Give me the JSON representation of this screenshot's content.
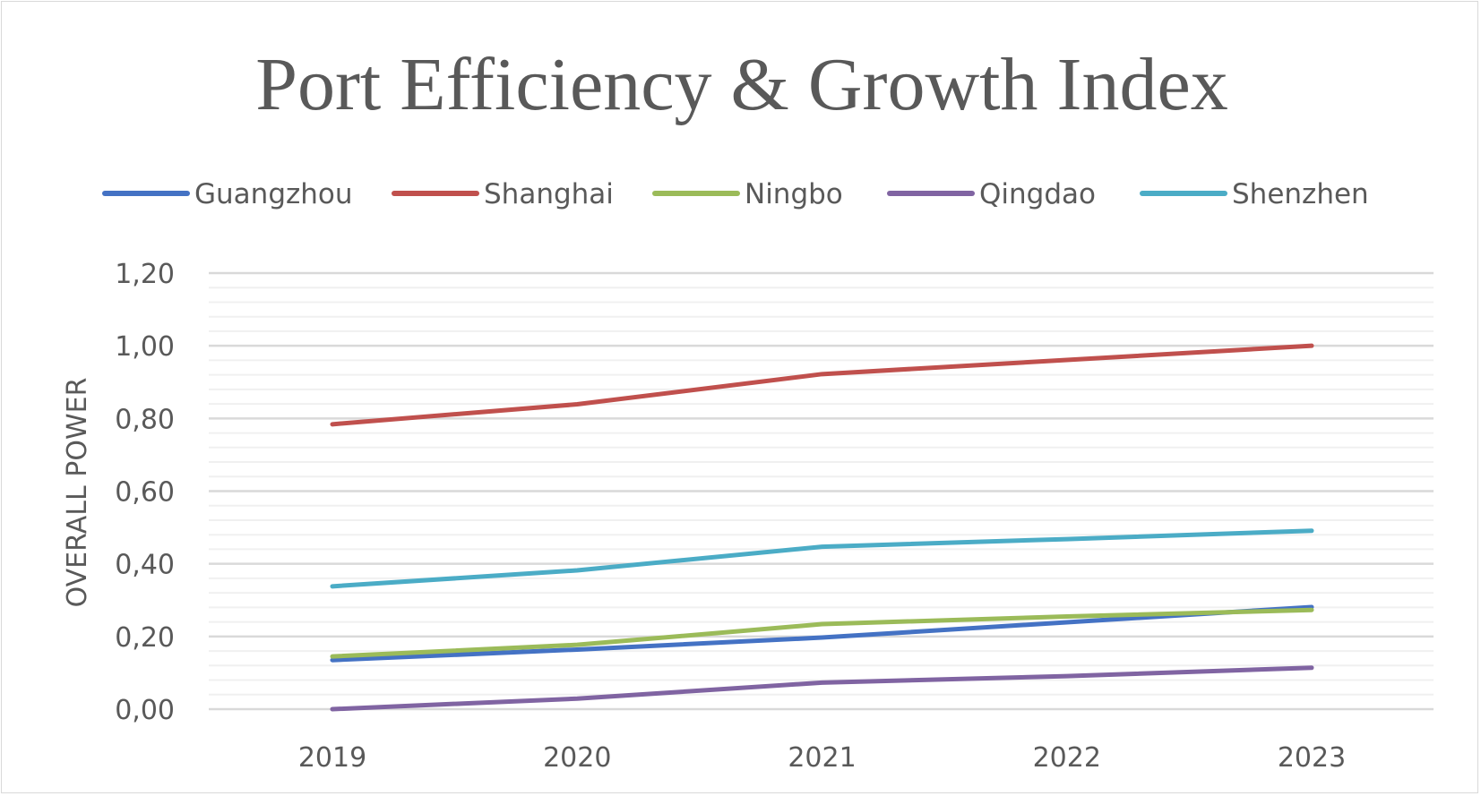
{
  "chart_data": {
    "type": "line",
    "title": "Port Efficiency & Growth Index",
    "xlabel": "",
    "ylabel": "OVERALL POWER",
    "categories": [
      "2019",
      "2020",
      "2021",
      "2022",
      "2023"
    ],
    "ylim": [
      0,
      1.2
    ],
    "yticks": [
      "0,00",
      "0,20",
      "0,40",
      "0,60",
      "0,80",
      "1,00",
      "1,20"
    ],
    "grid": true,
    "legend": "top",
    "series": [
      {
        "name": "Guangzhou",
        "color": "#4472c4",
        "values": [
          0.135,
          0.164,
          0.197,
          0.239,
          0.281
        ]
      },
      {
        "name": "Shanghai",
        "color": "#c0504d",
        "values": [
          0.784,
          0.839,
          0.922,
          0.961,
          1.0
        ]
      },
      {
        "name": "Ningbo",
        "color": "#9bbb59",
        "values": [
          0.145,
          0.177,
          0.234,
          0.255,
          0.273
        ]
      },
      {
        "name": "Qingdao",
        "color": "#8064a2",
        "values": [
          0.0,
          0.029,
          0.073,
          0.091,
          0.114
        ]
      },
      {
        "name": "Shenzhen",
        "color": "#4bacc6",
        "values": [
          0.338,
          0.382,
          0.447,
          0.468,
          0.491
        ]
      }
    ]
  }
}
